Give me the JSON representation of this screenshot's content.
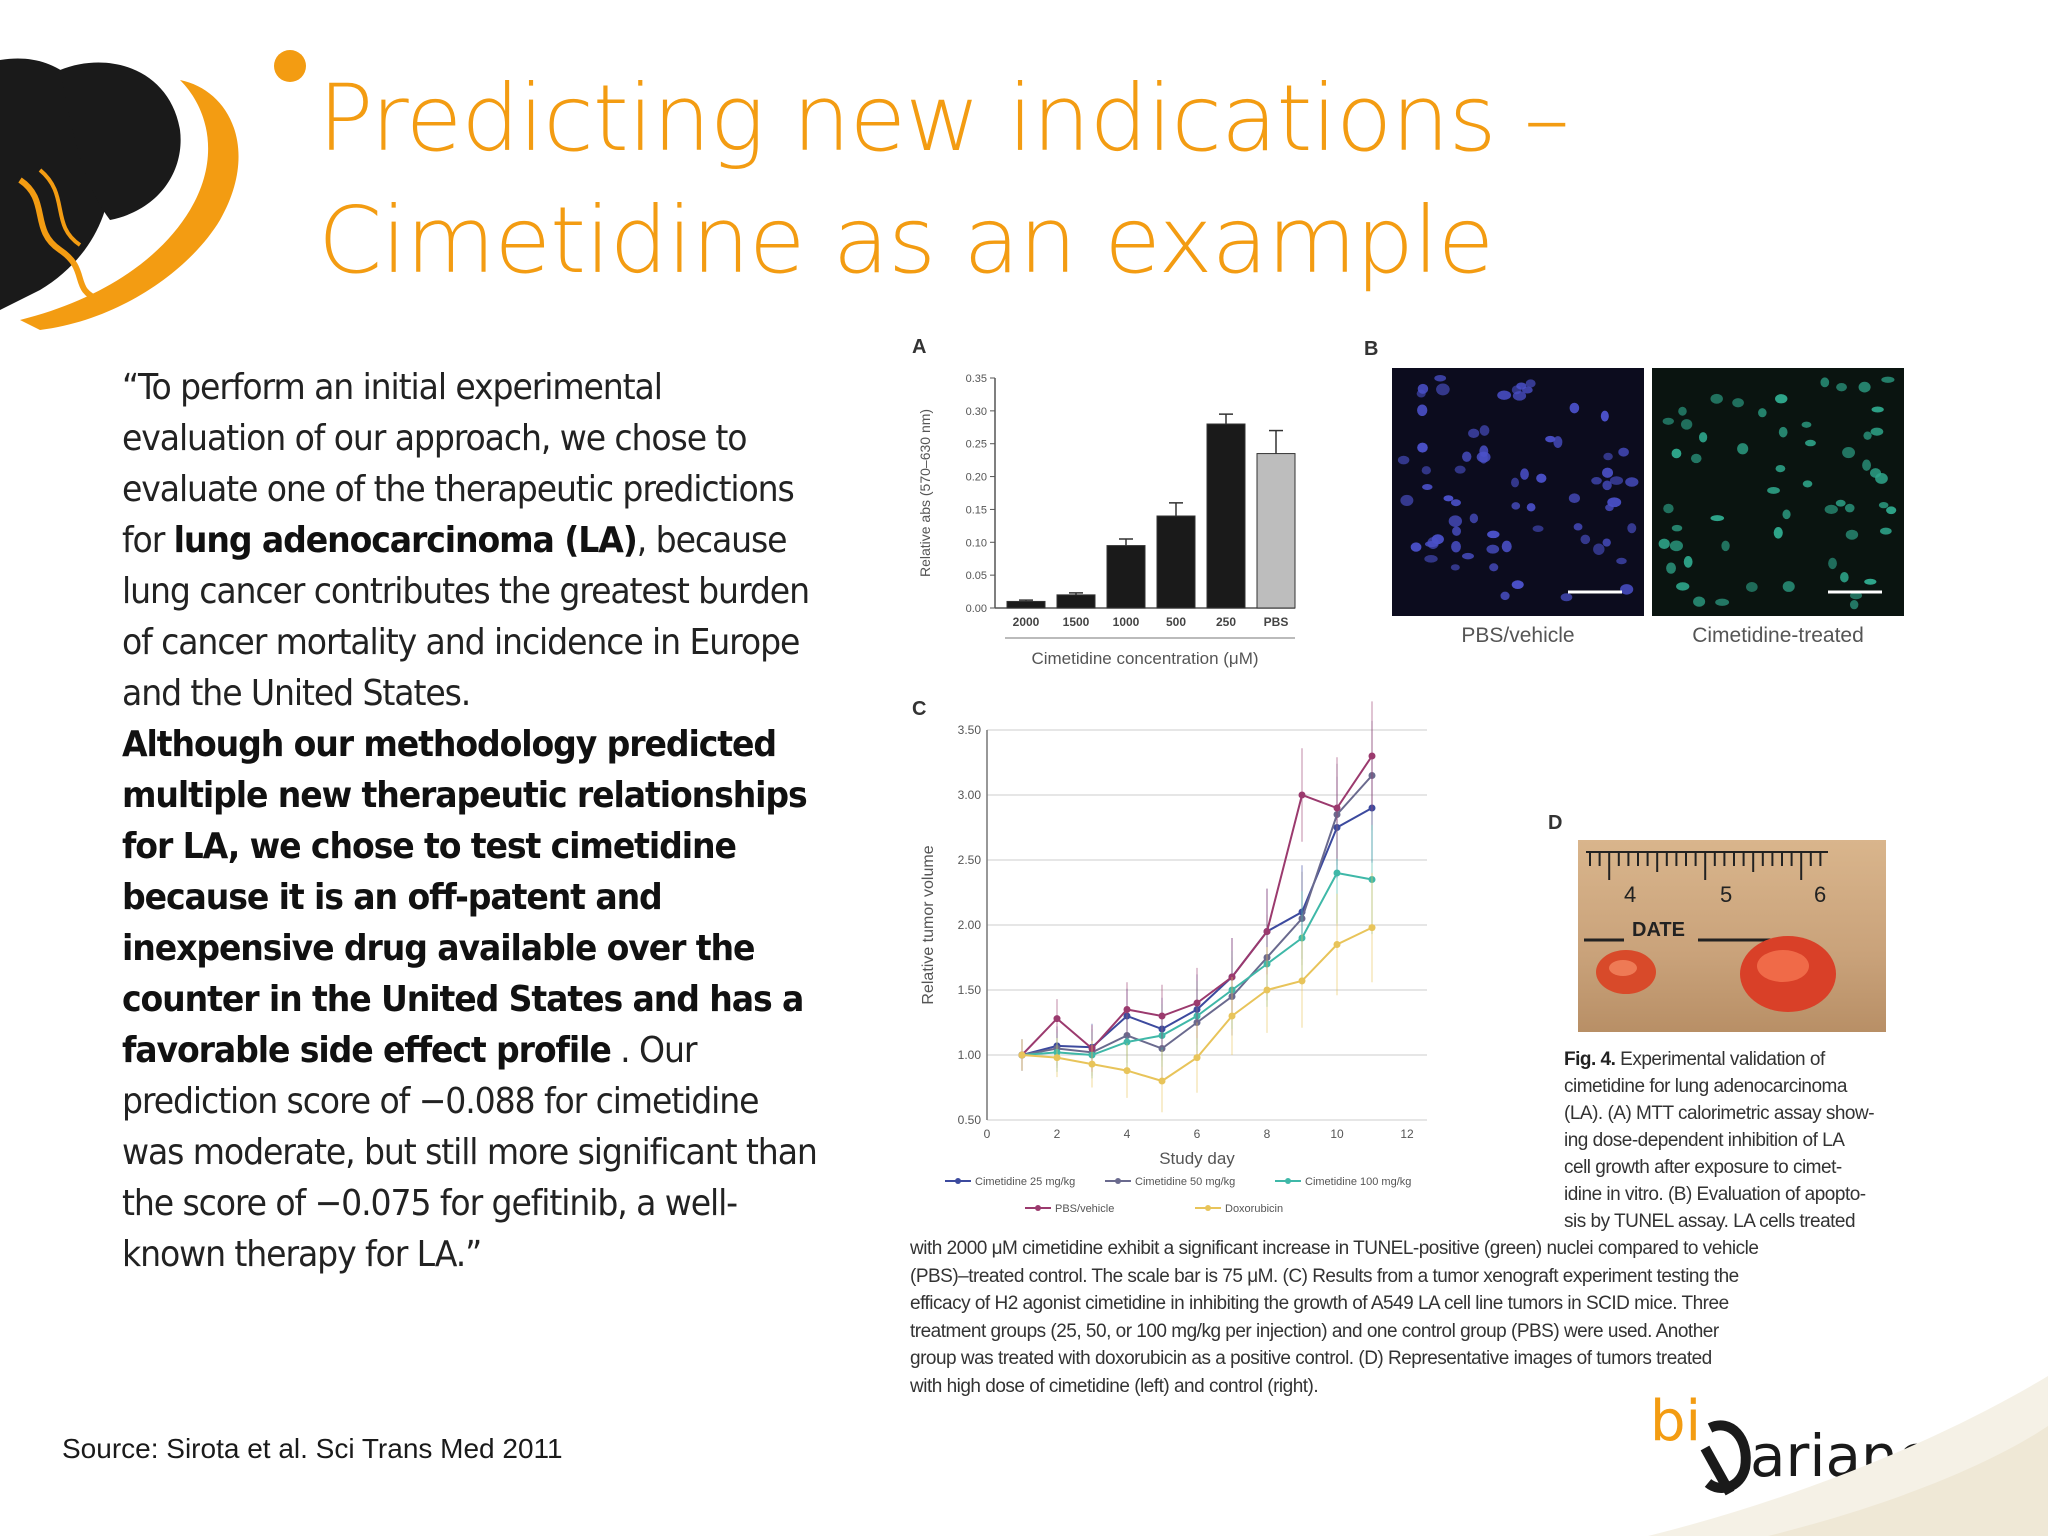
{
  "title": {
    "line1": "Predicting new indications –",
    "line2": "Cimetidine as an example"
  },
  "quote": {
    "part1": "“To perform an initial experimental evaluation of our approach, we chose to evaluate one of the therapeutic predictions for ",
    "bold1": "lung adenocarcinoma (LA)",
    "part2": ", because lung cancer contributes the greatest burden of cancer mortality and incidence in Europe and the United States.",
    "bold2": "Although our methodology predicted multiple new therapeutic relationships for LA, we chose to test cimetidine because it is an off-patent and inexpensive drug available over the counter in the United States and has a favorable side effect profile",
    "part3": " . Our prediction score of −0.088 for cimetidine was moderate, but still more significant than the score of −0.075 for gefitinib, a well-known therapy for LA.”"
  },
  "source": "Source:  Sirota et al. Sci Trans Med 2011",
  "figure": {
    "panel_a_letter": "A",
    "panel_b_letter": "B",
    "panel_c_letter": "C",
    "panel_d_letter": "D",
    "panel_b_labels": [
      "PBS/vehicle",
      "Cimetidine-treated"
    ],
    "panel_d_ruler_numbers": [
      "4",
      "5",
      "6"
    ],
    "panel_d_date_label": "DATE",
    "caption_side": [
      {
        "bold": "Fig. 4.",
        "text": " Experimental validation of"
      },
      {
        "bold": "",
        "text": "cimetidine for lung adenocarcinoma"
      },
      {
        "bold": "",
        "text": "(LA). (A) MTT calorimetric assay show-"
      },
      {
        "bold": "",
        "text": "ing dose-dependent inhibition of LA"
      },
      {
        "bold": "",
        "text": "cell growth after exposure to cimet-"
      },
      {
        "bold": "",
        "text": "idine in vitro. (B) Evaluation of apopto-"
      },
      {
        "bold": "",
        "text": "sis by TUNEL assay. LA cells treated"
      }
    ],
    "caption_wide": [
      "with 2000 μM cimetidine exhibit a significant increase in TUNEL-positive (green) nuclei compared to vehicle",
      "(PBS)–treated control. The scale bar is 75 μM. (C) Results from a tumor xenograft experiment testing the",
      "efficacy of H2 agonist cimetidine in inhibiting the growth of A549 LA cell line tumors in SCID mice. Three",
      "treatment groups (25, 50, or 100 mg/kg per injection) and one control group (PBS) were used. Another",
      "group was treated with doxorubicin as a positive control. (D) Representative images of tumors treated",
      "with high dose of cimetidine (left) and control (right)."
    ]
  },
  "logo_text": "ariance",
  "logo_text_prefix": "bi",
  "chart_data": [
    {
      "type": "bar",
      "categories": [
        "2000",
        "1500",
        "1000",
        "500",
        "250",
        "PBS"
      ],
      "values": [
        0.01,
        0.02,
        0.095,
        0.14,
        0.28,
        0.235
      ],
      "errors": [
        0.002,
        0.003,
        0.01,
        0.02,
        0.015,
        0.035
      ],
      "colors": [
        "#1a1a1a",
        "#1a1a1a",
        "#1a1a1a",
        "#1a1a1a",
        "#1a1a1a",
        "#bdbdbd"
      ],
      "xlabel": "Cimetidine concentration (μM)",
      "ylabel": "Relative abs (570–630 nm)",
      "yticks": [
        "0.00",
        "0.05",
        "0.10",
        "0.15",
        "0.20",
        "0.25",
        "0.30",
        "0.35"
      ],
      "ylim": [
        0,
        0.35
      ]
    },
    {
      "type": "line",
      "x": [
        1,
        2,
        3,
        4,
        5,
        6,
        7,
        8,
        9,
        10,
        11
      ],
      "xlabel": "Study day",
      "ylabel": "Relative tumor volume",
      "xticks": [
        "0",
        "2",
        "4",
        "6",
        "8",
        "10",
        "12"
      ],
      "yticks": [
        "0.50",
        "1.00",
        "1.50",
        "2.00",
        "2.50",
        "3.00",
        "3.50"
      ],
      "xlim": [
        0,
        12
      ],
      "ylim": [
        0.5,
        3.5
      ],
      "series": [
        {
          "name": "Cimetidine 25 mg/kg",
          "color": "#3c4a9e",
          "values": [
            1.0,
            1.07,
            1.06,
            1.3,
            1.2,
            1.35,
            1.6,
            1.95,
            2.1,
            2.75,
            2.9
          ]
        },
        {
          "name": "Cimetidine 50 mg/kg",
          "color": "#6a6a8e",
          "values": [
            1.0,
            1.05,
            1.02,
            1.15,
            1.05,
            1.25,
            1.45,
            1.75,
            2.05,
            2.85,
            3.15
          ]
        },
        {
          "name": "Cimetidine 100 mg/kg",
          "color": "#3fb8a8",
          "values": [
            1.0,
            1.02,
            1.0,
            1.1,
            1.15,
            1.3,
            1.5,
            1.7,
            1.9,
            2.4,
            2.35
          ]
        },
        {
          "name": "PBS/vehicle",
          "color": "#9b3a6e",
          "values": [
            1.0,
            1.28,
            1.05,
            1.35,
            1.3,
            1.4,
            1.6,
            1.95,
            3.0,
            2.9,
            3.3
          ]
        },
        {
          "name": "Doxorubicin",
          "color": "#e8c45a",
          "values": [
            1.0,
            0.98,
            0.93,
            0.88,
            0.8,
            0.98,
            1.3,
            1.5,
            1.57,
            1.85,
            1.98
          ]
        }
      ]
    }
  ]
}
